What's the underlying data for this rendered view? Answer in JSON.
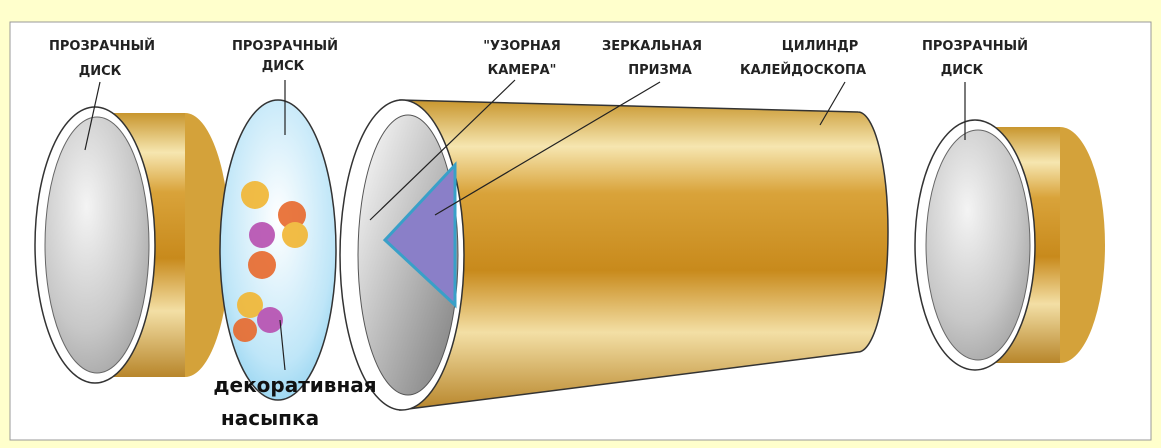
{
  "labels": [
    {
      "lines": [
        "ПРОЗРАЧНЫЙ",
        "ДИСК"
      ]
    },
    {
      "lines": [
        "ПРОЗРАЧНЫЙ",
        "ДИСК"
      ]
    },
    {
      "lines": [
        "\"УЗОРНАЯ",
        "КАМЕРА\""
      ]
    },
    {
      "lines": [
        "ЗЕРКАЛЬНАЯ",
        "ПРИЗМА"
      ]
    },
    {
      "lines": [
        "ЦИЛИНДР",
        "КАЛЕЙДОСКОПА"
      ]
    },
    {
      "lines": [
        "ПРОЗРАЧНЫЙ",
        "ДИСК"
      ]
    },
    {
      "lines": [
        "декоративная",
        "насыпка"
      ]
    }
  ]
}
